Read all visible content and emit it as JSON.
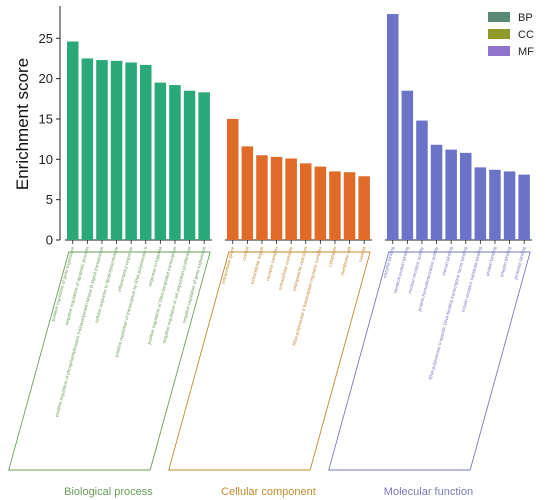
{
  "chart_data": {
    "type": "bar",
    "ylabel": "Enrichment score",
    "ylim": [
      0,
      29
    ],
    "yticks": [
      0,
      5,
      10,
      15,
      20,
      25
    ],
    "grid": false,
    "legend": {
      "placement": "top-right",
      "entries": [
        {
          "label": "BP",
          "color": "#5a8a76"
        },
        {
          "label": "CC",
          "color": "#8e9a2a"
        },
        {
          "label": "MF",
          "color": "#8f74c9"
        }
      ]
    },
    "groups": [
      {
        "name": "Biological process",
        "color": "#2aa878",
        "label_color": "#6b9e5b",
        "categories": [
          "positive regulation of gene expression",
          "negative regulation of apoptotic process",
          "positive regulation of phosphatidylinositol 3-kinase/protein kinase B signal transduction",
          "cellular response to lipopolysaccharide",
          "inflammatory response",
          "positive regulation of transcription by RNA polymerase II",
          "response to hypoxia",
          "positive regulation of DNA-templated transcription",
          "negative regulation of cell population proliferation",
          "negative regulation of gene expression"
        ],
        "values": [
          24.6,
          22.5,
          22.3,
          22.2,
          22.0,
          21.7,
          19.5,
          19.2,
          18.5,
          18.3
        ]
      },
      {
        "name": "Cellular component",
        "color": "#e06a28",
        "label_color": "#c08a2e",
        "categories": [
          "extracellular space",
          "cytosol",
          "extracellular region",
          "receptor complex",
          "extracellular exosome",
          "endoplasmic reticulum",
          "RNA polymerase II transcription regulator complex",
          "cytoplasm",
          "membrane raft",
          "caveola"
        ],
        "values": [
          15.0,
          11.6,
          10.5,
          10.3,
          10.1,
          9.5,
          9.1,
          8.5,
          8.4,
          7.9
        ]
      },
      {
        "name": "Molecular function",
        "color": "#6a73c8",
        "label_color": "#7a7ac0",
        "categories": [
          "enzyme binding",
          "identical protein binding",
          "nuclear receptor activity",
          "protein homodimerization activity",
          "steroid binding",
          "RNA polymerase II-specific DNA-binding transcription factor binding",
          "insulin receptor substrate binding",
          "protein binding",
          "integrin binding",
          "protease binding"
        ],
        "values": [
          28.0,
          18.5,
          14.8,
          11.8,
          11.2,
          10.8,
          9.0,
          8.7,
          8.5,
          8.1
        ]
      }
    ]
  }
}
